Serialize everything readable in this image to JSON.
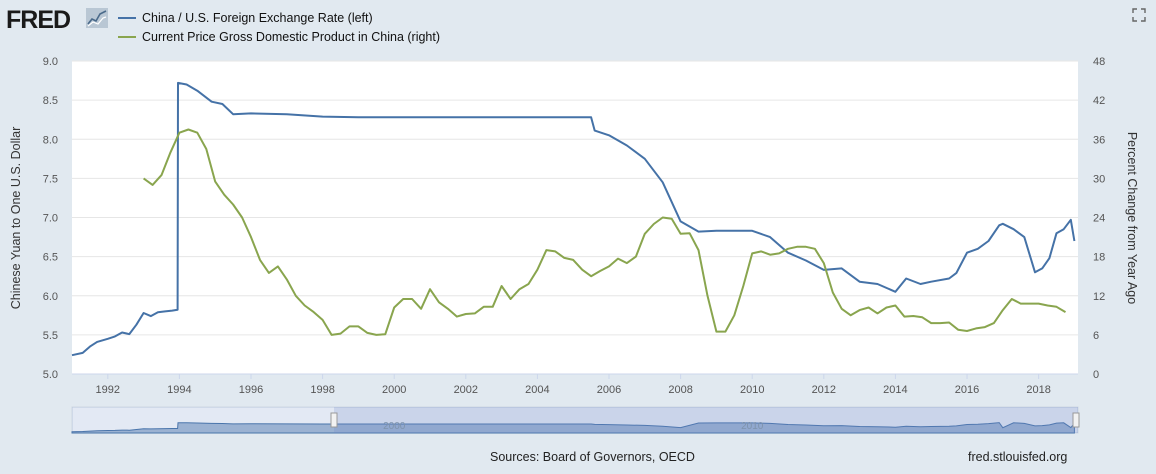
{
  "brand": {
    "name": "FRED"
  },
  "legend": [
    {
      "label": "China / U.S. Foreign Exchange Rate (left)",
      "color": "#4572a7"
    },
    {
      "label": "Current Price Gross Domestic Product in China (right)",
      "color": "#89a54e"
    }
  ],
  "footer": {
    "sources": "Sources: Board of Governors, OECD",
    "site": "fred.stlouisfed.org"
  },
  "chart_data": {
    "type": "line",
    "xlabel": "",
    "ylabel_left": "Chinese Yuan to One U.S. Dollar",
    "ylabel_right": "Percent Change from Year Ago",
    "xlim": [
      1991.0,
      2019.1
    ],
    "ylim_left": [
      5.0,
      9.0
    ],
    "ylim_right": [
      0,
      48
    ],
    "yticks_left": [
      "5.0",
      "5.5",
      "6.0",
      "6.5",
      "7.0",
      "7.5",
      "8.0",
      "8.5",
      "9.0"
    ],
    "yticks_right": [
      "0",
      "6",
      "12",
      "18",
      "24",
      "30",
      "36",
      "42",
      "48"
    ],
    "xticks": [
      "1992",
      "1994",
      "1996",
      "1998",
      "2000",
      "2002",
      "2004",
      "2006",
      "2008",
      "2010",
      "2012",
      "2014",
      "2016",
      "2018"
    ],
    "navigator_labels": [
      "2000",
      "2010"
    ],
    "grid": true,
    "series": [
      {
        "name": "China / U.S. Foreign Exchange Rate (left)",
        "axis": "left",
        "color": "#4572a7",
        "x": [
          1991.0,
          1991.3,
          1991.5,
          1991.7,
          1992.0,
          1992.2,
          1992.4,
          1992.6,
          1992.8,
          1993.0,
          1993.2,
          1993.4,
          1993.6,
          1993.8,
          1993.95,
          1993.96,
          1994.2,
          1994.5,
          1994.9,
          1995.2,
          1995.5,
          1996.0,
          1997.0,
          1998.0,
          1999.0,
          2000.0,
          2002.0,
          2004.0,
          2005.5,
          2005.6,
          2006.0,
          2006.5,
          2007.0,
          2007.5,
          2008.0,
          2008.5,
          2009.0,
          2010.0,
          2010.5,
          2011.0,
          2011.5,
          2012.0,
          2012.5,
          2013.0,
          2013.5,
          2014.0,
          2014.3,
          2014.7,
          2015.0,
          2015.5,
          2015.7,
          2016.0,
          2016.3,
          2016.6,
          2016.9,
          2017.0,
          2017.3,
          2017.6,
          2017.9,
          2018.1,
          2018.3,
          2018.5,
          2018.7,
          2018.9,
          2019.0
        ],
        "values": [
          5.24,
          5.27,
          5.35,
          5.41,
          5.45,
          5.48,
          5.53,
          5.51,
          5.63,
          5.78,
          5.74,
          5.79,
          5.8,
          5.81,
          5.82,
          8.72,
          8.7,
          8.62,
          8.48,
          8.45,
          8.32,
          8.33,
          8.32,
          8.29,
          8.28,
          8.28,
          8.28,
          8.28,
          8.28,
          8.11,
          8.05,
          7.92,
          7.75,
          7.45,
          6.95,
          6.82,
          6.83,
          6.83,
          6.75,
          6.55,
          6.45,
          6.33,
          6.35,
          6.18,
          6.15,
          6.05,
          6.22,
          6.15,
          6.18,
          6.22,
          6.29,
          6.55,
          6.6,
          6.7,
          6.9,
          6.92,
          6.85,
          6.75,
          6.3,
          6.35,
          6.48,
          6.8,
          6.85,
          6.97,
          6.7
        ]
      },
      {
        "name": "Current Price Gross Domestic Product in China (right)",
        "axis": "right",
        "color": "#89a54e",
        "x": [
          1993.0,
          1993.25,
          1993.5,
          1993.75,
          1994.0,
          1994.25,
          1994.5,
          1994.75,
          1995.0,
          1995.25,
          1995.5,
          1995.75,
          1996.0,
          1996.25,
          1996.5,
          1996.75,
          1997.0,
          1997.25,
          1997.5,
          1997.75,
          1998.0,
          1998.25,
          1998.5,
          1998.75,
          1999.0,
          1999.25,
          1999.5,
          1999.75,
          2000.0,
          2000.25,
          2000.5,
          2000.75,
          2001.0,
          2001.25,
          2001.5,
          2001.75,
          2002.0,
          2002.25,
          2002.5,
          2002.75,
          2003.0,
          2003.25,
          2003.5,
          2003.75,
          2004.0,
          2004.25,
          2004.5,
          2004.75,
          2005.0,
          2005.25,
          2005.5,
          2005.75,
          2006.0,
          2006.25,
          2006.5,
          2006.75,
          2007.0,
          2007.25,
          2007.5,
          2007.75,
          2008.0,
          2008.25,
          2008.5,
          2008.75,
          2009.0,
          2009.25,
          2009.5,
          2009.75,
          2010.0,
          2010.25,
          2010.5,
          2010.75,
          2011.0,
          2011.25,
          2011.5,
          2011.75,
          2012.0,
          2012.25,
          2012.5,
          2012.75,
          2013.0,
          2013.25,
          2013.5,
          2013.75,
          2014.0,
          2014.25,
          2014.5,
          2014.75,
          2015.0,
          2015.25,
          2015.5,
          2015.75,
          2016.0,
          2016.25,
          2016.5,
          2016.75,
          2017.0,
          2017.25,
          2017.5,
          2017.75,
          2018.0,
          2018.25,
          2018.5,
          2018.75
        ],
        "values": [
          30.0,
          29.0,
          30.5,
          34.0,
          37.0,
          37.5,
          37.0,
          34.5,
          29.5,
          27.5,
          26.0,
          24.0,
          21.0,
          17.5,
          15.5,
          16.5,
          14.5,
          12.0,
          10.5,
          9.5,
          8.3,
          6.0,
          6.2,
          7.3,
          7.3,
          6.3,
          6.0,
          6.1,
          10.2,
          11.5,
          11.5,
          10.0,
          13.0,
          11.0,
          10.0,
          8.8,
          9.2,
          9.3,
          10.3,
          10.3,
          13.5,
          11.5,
          13.0,
          13.8,
          16.0,
          19.0,
          18.8,
          17.8,
          17.5,
          16.0,
          15.0,
          15.8,
          16.5,
          17.7,
          17.0,
          18.0,
          21.5,
          23.0,
          24.0,
          23.8,
          21.5,
          21.6,
          19.0,
          12.0,
          6.5,
          6.5,
          9.0,
          13.5,
          18.5,
          18.8,
          18.3,
          18.5,
          19.2,
          19.5,
          19.5,
          19.2,
          17.0,
          12.5,
          10.0,
          9.0,
          9.8,
          10.2,
          9.3,
          10.2,
          10.5,
          8.8,
          8.9,
          8.7,
          7.8,
          7.8,
          7.9,
          6.8,
          6.6,
          7.0,
          7.2,
          7.8,
          9.8,
          11.5,
          10.8,
          10.8,
          10.8,
          10.5,
          10.3,
          9.5
        ]
      }
    ]
  }
}
